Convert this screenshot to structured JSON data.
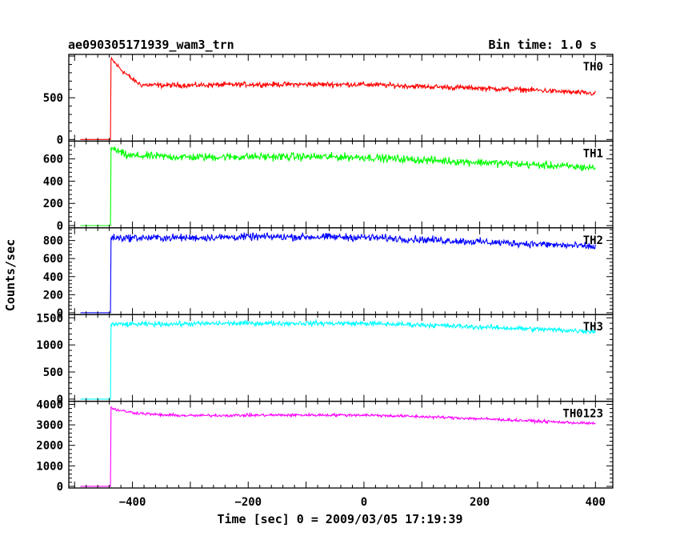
{
  "chart_data": {
    "type": "line",
    "title": "ae090305171939_wam3_trn",
    "subtitle": "Bin time: 1.0 s",
    "xlabel": "Time [sec] 0 = 2009/03/05 17:19:39",
    "ylabel": "Counts/sec",
    "xlim": [
      -510,
      430
    ],
    "x_ticks": [
      -400,
      -200,
      0,
      200,
      400
    ],
    "x_tick_labels": [
      "−400",
      "−200",
      "0",
      "200",
      "400"
    ],
    "grid": false,
    "panels": [
      {
        "name": "TH0",
        "color": "#ff0000",
        "ylim": [
          -20,
          1020
        ],
        "y_ticks": [
          0,
          500
        ],
        "y_tick_labels": [
          "0",
          "500"
        ],
        "x": [
          -490,
          -438,
          -437,
          -432,
          -420,
          -400,
          -385,
          -350,
          -300,
          -200,
          -100,
          0,
          100,
          200,
          300,
          350,
          400
        ],
        "y": [
          0,
          0,
          960,
          930,
          840,
          720,
          655,
          650,
          650,
          660,
          660,
          660,
          635,
          615,
          590,
          570,
          550
        ],
        "noise": 30
      },
      {
        "name": "TH1",
        "color": "#00ff00",
        "ylim": [
          -20,
          760
        ],
        "y_ticks": [
          0,
          200,
          400,
          600
        ],
        "y_tick_labels": [
          "0",
          "200",
          "400",
          "600"
        ],
        "x": [
          -490,
          -438,
          -437,
          -430,
          -410,
          -300,
          -200,
          -100,
          0,
          100,
          200,
          300,
          400
        ],
        "y": [
          0,
          0,
          700,
          680,
          630,
          615,
          620,
          620,
          615,
          590,
          570,
          545,
          520
        ],
        "noise": 35
      },
      {
        "name": "TH2",
        "color": "#0000ff",
        "ylim": [
          -20,
          940
        ],
        "y_ticks": [
          0,
          200,
          400,
          600,
          800
        ],
        "y_tick_labels": [
          "0",
          "200",
          "400",
          "600",
          "800"
        ],
        "x": [
          -490,
          -438,
          -437,
          -400,
          -300,
          -200,
          -100,
          0,
          100,
          200,
          300,
          400
        ],
        "y": [
          0,
          0,
          830,
          830,
          830,
          840,
          840,
          835,
          810,
          785,
          760,
          730
        ],
        "noise": 40
      },
      {
        "name": "TH3",
        "color": "#00ffff",
        "ylim": [
          -40,
          1560
        ],
        "y_ticks": [
          0,
          500,
          1000,
          1500
        ],
        "y_tick_labels": [
          "0",
          "500",
          "1000",
          "1500"
        ],
        "x": [
          -490,
          -438,
          -437,
          -400,
          -300,
          -200,
          -100,
          0,
          100,
          200,
          300,
          400
        ],
        "y": [
          0,
          0,
          1380,
          1380,
          1390,
          1400,
          1400,
          1395,
          1370,
          1330,
          1290,
          1250
        ],
        "noise": 45
      },
      {
        "name": "TH0123",
        "color": "#ff00ff",
        "ylim": [
          -80,
          4150
        ],
        "y_ticks": [
          0,
          1000,
          2000,
          3000,
          4000
        ],
        "y_tick_labels": [
          "0",
          "1000",
          "2000",
          "3000",
          "4000"
        ],
        "x": [
          -490,
          -438,
          -437,
          -430,
          -400,
          -350,
          -300,
          -200,
          -100,
          0,
          100,
          200,
          300,
          400
        ],
        "y": [
          0,
          0,
          3850,
          3750,
          3600,
          3480,
          3450,
          3470,
          3480,
          3480,
          3400,
          3300,
          3180,
          3060
        ],
        "noise": 70
      }
    ]
  }
}
